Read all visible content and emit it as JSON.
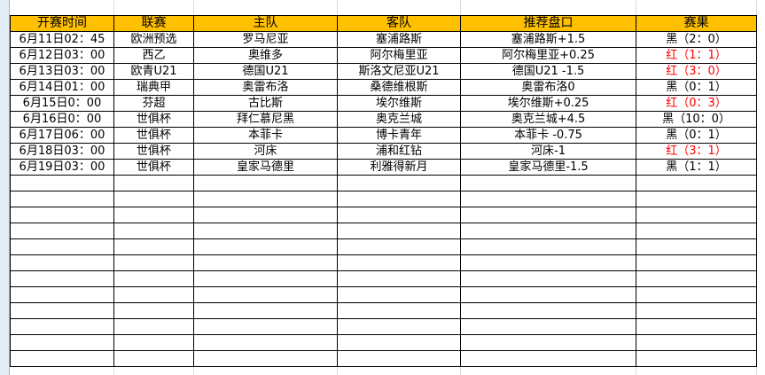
{
  "columns": [
    "开赛时间",
    "联赛",
    "主队",
    "客队",
    "推荐盘口",
    "赛果"
  ],
  "rows": [
    {
      "time": "6月11日02：45",
      "league": "欧洲预选",
      "home": "罗马尼亚",
      "away": "塞浦路斯",
      "tip": "塞浦路斯+1.5",
      "result": "黑（2：0）",
      "win": false
    },
    {
      "time": "6月12日03：00",
      "league": "西乙",
      "home": "奥维多",
      "away": "阿尔梅里亚",
      "tip": "阿尔梅里亚+0.25",
      "result": "红（1：1）",
      "win": true
    },
    {
      "time": "6月13日03：00",
      "league": "欧青U21",
      "home": "德国U21",
      "away": "斯洛文尼亚U21",
      "tip": "德国U21 -1.5",
      "result": "红（3：0）",
      "win": true
    },
    {
      "time": "6月14日01：00",
      "league": "瑞典甲",
      "home": "奥雷布洛",
      "away": "桑德维根斯",
      "tip": "奥雷布洛0",
      "result": "黑（0：1）",
      "win": false
    },
    {
      "time": "6月15日0：00",
      "league": "芬超",
      "home": "古比斯",
      "away": "埃尔维斯",
      "tip": "埃尔维斯+0.25",
      "result": "红（0：3）",
      "win": true
    },
    {
      "time": "6月16日0：00",
      "league": "世俱杯",
      "home": "拜仁慕尼黑",
      "away": "奥克兰城",
      "tip": "奥克兰城+4.5",
      "result": "黑（10：0）",
      "win": false
    },
    {
      "time": "6月17日06：00",
      "league": "世俱杯",
      "home": "本菲卡",
      "away": "博卡青年",
      "tip": "本菲卡 -0.75",
      "result": "黑（0：1）",
      "win": false
    },
    {
      "time": "6月18日03：00",
      "league": "世俱杯",
      "home": "河床",
      "away": "浦和红钻",
      "tip": "河床-1",
      "result": "红（3：1）",
      "win": true
    },
    {
      "time": "6月19日03：00",
      "league": "世俱杯",
      "home": "皇家马德里",
      "away": "利雅得新月",
      "tip": "皇家马德里-1.5",
      "result": "黑（1：1）",
      "win": false
    }
  ],
  "colors": {
    "header_bg": "#ffc000",
    "win_text": "#ff0000",
    "loss_text": "#000000"
  }
}
